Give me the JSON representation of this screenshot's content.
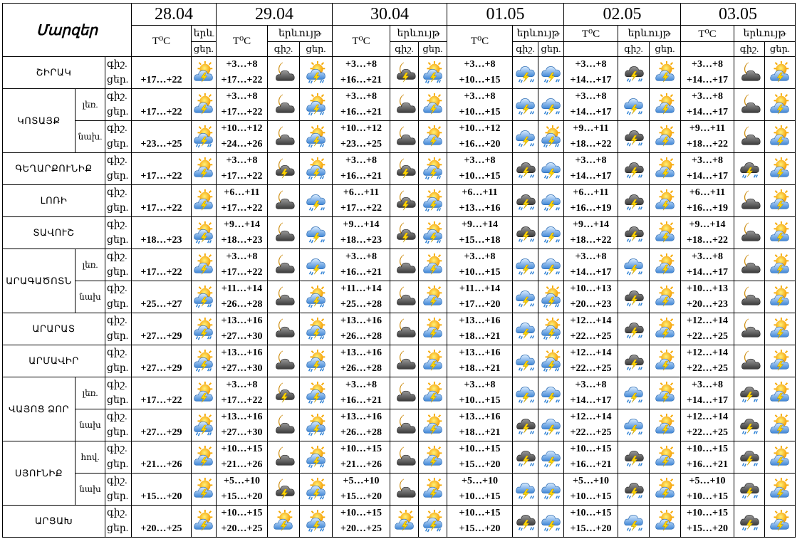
{
  "header": {
    "regions_label": "Մարզեր",
    "dates": [
      "28.04",
      "29.04",
      "30.04",
      "01.05",
      "02.05",
      "03.05"
    ],
    "temp_label": "T⁰C",
    "phenom_label": "երևույթ",
    "phenom_label_short": "երև",
    "night_label": "գիշ.",
    "day_label": "ցեր."
  },
  "icon_legend": {
    "sun-cloud-storm": "partly sunny with thunderstorm",
    "moon-cloud": "night partly cloudy",
    "moon-cloud-storm": "night cloudy with thunderstorm",
    "cloud-storm": "cloudy with thunderstorm",
    "cloud-rain-storm": "cloudy with rain and thunderstorm",
    "sun-cloud-rain-storm": "partly sunny with rain and thunderstorm"
  },
  "colors": {
    "sun": "#f5a800",
    "moon": "#f2b705",
    "cloud_light": "#6e9fd8",
    "cloud_dark": "#4d4d4d",
    "bolt": "#ffd500",
    "rain": "#2a7fd4"
  },
  "rows": [
    {
      "region": "ՇԻՐԱԿ",
      "sub": "",
      "d1": {
        "day": "+17…+22",
        "icon": "sun-cloud-storm"
      },
      "days": [
        {
          "night": "+3…+8",
          "day": "+17…+22",
          "ni": "moon-cloud",
          "di": "sun-cloud-rain-storm"
        },
        {
          "night": "+3…+8",
          "day": "+16…+21",
          "ni": "moon-cloud-storm",
          "di": "sun-cloud-rain-storm"
        },
        {
          "night": "+3…+8",
          "day": "+10…+15",
          "ni": "cloud-rain-storm",
          "di": "cloud-rain-storm"
        },
        {
          "night": "+3…+8",
          "day": "+14…+17",
          "ni": "cloud-storm",
          "di": "sun-cloud-storm"
        },
        {
          "night": "+3…+8",
          "day": "+14…+17",
          "ni": "moon-cloud",
          "di": "sun-cloud-storm"
        }
      ]
    },
    {
      "region": "ԿՈՏԱՅՔ",
      "sub": "լեռ.",
      "d1": {
        "day": "+17…+22",
        "icon": "sun-cloud-storm"
      },
      "days": [
        {
          "night": "+3…+8",
          "day": "+17…+22",
          "ni": "moon-cloud",
          "di": "sun-cloud-rain-storm"
        },
        {
          "night": "+3…+8",
          "day": "+16…+21",
          "ni": "moon-cloud",
          "di": "sun-cloud-storm"
        },
        {
          "night": "+3…+8",
          "day": "+10…+15",
          "ni": "cloud-rain-storm",
          "di": "cloud-rain-storm"
        },
        {
          "night": "+3…+8",
          "day": "+14…+17",
          "ni": "cloud-rain-storm",
          "di": "sun-cloud-storm"
        },
        {
          "night": "+3…+8",
          "day": "+14…+17",
          "ni": "moon-cloud",
          "di": "sun-cloud-storm"
        }
      ]
    },
    {
      "region": "",
      "sub": "նախ.",
      "d1": {
        "day": "+23…+25",
        "icon": "sun-cloud-rain-storm"
      },
      "days": [
        {
          "night": "+10…+12",
          "day": "+24…+26",
          "ni": "moon-cloud",
          "di": "sun-cloud-rain-storm"
        },
        {
          "night": "+10…+12",
          "day": "+23…+25",
          "ni": "moon-cloud",
          "di": "sun-cloud-storm"
        },
        {
          "night": "+10…+12",
          "day": "+16…+20",
          "ni": "cloud-rain-storm",
          "di": "sun-cloud-rain-storm"
        },
        {
          "night": "+9…+11",
          "day": "+18…+22",
          "ni": "cloud-storm",
          "di": "sun-cloud-storm"
        },
        {
          "night": "+9…+11",
          "day": "+18…+22",
          "ni": "moon-cloud",
          "di": "sun-cloud-storm"
        }
      ]
    },
    {
      "region": "ԳԵՂԱՐՔՈՒՆԻՔ",
      "sub": "",
      "d1": {
        "day": "+17…+22",
        "icon": "sun-cloud-storm"
      },
      "days": [
        {
          "night": "+3…+8",
          "day": "+17…+22",
          "ni": "moon-cloud-storm",
          "di": "sun-cloud-rain-storm"
        },
        {
          "night": "+3…+8",
          "day": "+16…+21",
          "ni": "moon-cloud-storm",
          "di": "sun-cloud-rain-storm"
        },
        {
          "night": "+3…+8",
          "day": "+10…+15",
          "ni": "cloud-storm",
          "di": "cloud-rain-storm"
        },
        {
          "night": "+3…+8",
          "day": "+14…+17",
          "ni": "cloud-storm",
          "di": "sun-cloud-storm"
        },
        {
          "night": "+3…+8",
          "day": "+14…+17",
          "ni": "cloud-storm",
          "di": "sun-cloud-storm"
        }
      ]
    },
    {
      "region": "ԼՈՌԻ",
      "sub": "",
      "d1": {
        "day": "+17…+22",
        "icon": "sun-cloud-storm"
      },
      "days": [
        {
          "night": "+6…+11",
          "day": "+17…+22",
          "ni": "moon-cloud",
          "di": "cloud-rain-storm"
        },
        {
          "night": "+6…+11",
          "day": "+17…+22",
          "ni": "moon-cloud-storm",
          "di": "sun-cloud-rain-storm"
        },
        {
          "night": "+6…+11",
          "day": "+13…+16",
          "ni": "cloud-storm",
          "di": "cloud-rain-storm"
        },
        {
          "night": "+6…+11",
          "day": "+16…+19",
          "ni": "cloud-storm",
          "di": "sun-cloud-storm"
        },
        {
          "night": "+6…+11",
          "day": "+16…+19",
          "ni": "moon-cloud",
          "di": "sun-cloud-storm"
        }
      ]
    },
    {
      "region": "ՏԱՎՈՒՇ",
      "sub": "",
      "d1": {
        "day": "+18…+23",
        "icon": "sun-cloud-rain-storm"
      },
      "days": [
        {
          "night": "+9…+14",
          "day": "+18…+23",
          "ni": "moon-cloud",
          "di": "cloud-rain-storm"
        },
        {
          "night": "+9…+14",
          "day": "+18…+23",
          "ni": "moon-cloud-storm",
          "di": "sun-cloud-rain-storm"
        },
        {
          "night": "+9…+14",
          "day": "+15…+18",
          "ni": "cloud-storm",
          "di": "cloud-rain-storm"
        },
        {
          "night": "+9…+14",
          "day": "+18…+22",
          "ni": "cloud-storm",
          "di": "sun-cloud-storm"
        },
        {
          "night": "+9…+14",
          "day": "+18…+22",
          "ni": "moon-cloud",
          "di": "sun-cloud-storm"
        }
      ]
    },
    {
      "region": "ԱՐԱԳԱԾՈՏՆ",
      "sub": "լեռ.",
      "d1": {
        "day": "+17…+22",
        "icon": "sun-cloud-storm"
      },
      "days": [
        {
          "night": "+3…+8",
          "day": "+17…+22",
          "ni": "moon-cloud",
          "di": "cloud-rain-storm"
        },
        {
          "night": "+3…+8",
          "day": "+16…+21",
          "ni": "moon-cloud",
          "di": "sun-cloud-storm"
        },
        {
          "night": "+3…+8",
          "day": "+10…+15",
          "ni": "cloud-rain-storm",
          "di": "cloud-rain-storm"
        },
        {
          "night": "+3…+8",
          "day": "+14…+17",
          "ni": "cloud-rain-storm",
          "di": "sun-cloud-storm"
        },
        {
          "night": "+3…+8",
          "day": "+14…+17",
          "ni": "moon-cloud",
          "di": "sun-cloud-storm"
        }
      ]
    },
    {
      "region": "",
      "sub": "նախ",
      "d1": {
        "day": "+25…+27",
        "icon": "sun-cloud-rain-storm"
      },
      "days": [
        {
          "night": "+11…+14",
          "day": "+26…+28",
          "ni": "moon-cloud",
          "di": "sun-cloud-rain-storm"
        },
        {
          "night": "+11…+14",
          "day": "+25…+28",
          "ni": "moon-cloud",
          "di": "sun-cloud-storm"
        },
        {
          "night": "+11…+14",
          "day": "+17…+20",
          "ni": "cloud-rain-storm",
          "di": "sun-cloud-rain-storm"
        },
        {
          "night": "+10…+13",
          "day": "+20…+23",
          "ni": "cloud-storm",
          "di": "sun-cloud-storm"
        },
        {
          "night": "+10…+13",
          "day": "+20…+23",
          "ni": "moon-cloud",
          "di": "sun-cloud-storm"
        }
      ]
    },
    {
      "region": "ԱՐԱՐԱՏ",
      "sub": "",
      "d1": {
        "day": "+27…+29",
        "icon": "sun-cloud-rain-storm"
      },
      "days": [
        {
          "night": "+13…+16",
          "day": "+27…+30",
          "ni": "moon-cloud",
          "di": "sun-cloud-rain-storm"
        },
        {
          "night": "+13…+16",
          "day": "+26…+28",
          "ni": "moon-cloud",
          "di": "sun-cloud-storm"
        },
        {
          "night": "+13…+16",
          "day": "+18…+21",
          "ni": "cloud-rain-storm",
          "di": "sun-cloud-rain-storm"
        },
        {
          "night": "+12…+14",
          "day": "+22…+25",
          "ni": "cloud-storm",
          "di": "sun-cloud-storm"
        },
        {
          "night": "+12…+14",
          "day": "+22…+25",
          "ni": "moon-cloud",
          "di": "sun-cloud-storm"
        }
      ]
    },
    {
      "region": "ԱՐՄԱՎԻՐ",
      "sub": "",
      "d1": {
        "day": "+27…+29",
        "icon": "sun-cloud-rain-storm"
      },
      "days": [
        {
          "night": "+13…+16",
          "day": "+27…+30",
          "ni": "moon-cloud",
          "di": "sun-cloud-rain-storm"
        },
        {
          "night": "+13…+16",
          "day": "+26…+28",
          "ni": "moon-cloud",
          "di": "sun-cloud-storm"
        },
        {
          "night": "+13…+16",
          "day": "+18…+21",
          "ni": "cloud-rain-storm",
          "di": "sun-cloud-rain-storm"
        },
        {
          "night": "+12…+14",
          "day": "+22…+25",
          "ni": "cloud-storm",
          "di": "sun-cloud-storm"
        },
        {
          "night": "+12…+14",
          "day": "+22…+25",
          "ni": "moon-cloud",
          "di": "sun-cloud-storm"
        }
      ]
    },
    {
      "region": "ՎԱՅՈՑ ՁՈՐ",
      "sub": "լեռ.",
      "d1": {
        "day": "+17…+22",
        "icon": "sun-cloud-storm"
      },
      "days": [
        {
          "night": "+3…+8",
          "day": "+17…+22",
          "ni": "moon-cloud-storm",
          "di": "sun-cloud-rain-storm"
        },
        {
          "night": "+3…+8",
          "day": "+16…+21",
          "ni": "moon-cloud",
          "di": "sun-cloud-storm"
        },
        {
          "night": "+3…+8",
          "day": "+10…+15",
          "ni": "cloud-rain-storm",
          "di": "cloud-rain-storm"
        },
        {
          "night": "+3…+8",
          "day": "+14…+17",
          "ni": "cloud-rain-storm",
          "di": "sun-cloud-storm"
        },
        {
          "night": "+3…+8",
          "day": "+14…+17",
          "ni": "cloud-storm",
          "di": "sun-cloud-storm"
        }
      ]
    },
    {
      "region": "",
      "sub": "նախ",
      "d1": {
        "day": "+27…+29",
        "icon": "sun-cloud-rain-storm"
      },
      "days": [
        {
          "night": "+13…+16",
          "day": "+27…+30",
          "ni": "moon-cloud",
          "di": "sun-cloud-rain-storm"
        },
        {
          "night": "+13…+16",
          "day": "+26…+28",
          "ni": "moon-cloud",
          "di": "sun-cloud-storm"
        },
        {
          "night": "+13…+16",
          "day": "+18…+21",
          "ni": "cloud-storm",
          "di": "cloud-rain-storm"
        },
        {
          "night": "+12…+14",
          "day": "+22…+25",
          "ni": "cloud-rain-storm",
          "di": "sun-cloud-storm"
        },
        {
          "night": "+12…+14",
          "day": "+22…+25",
          "ni": "cloud-storm",
          "di": "sun-cloud-storm"
        }
      ]
    },
    {
      "region": "ՍՅՈՒՆԻՔ",
      "sub": "հով.",
      "d1": {
        "day": "+21…+26",
        "icon": "sun-cloud-storm"
      },
      "days": [
        {
          "night": "+10…+15",
          "day": "+21…+26",
          "ni": "moon-cloud",
          "di": "sun-cloud-rain-storm"
        },
        {
          "night": "+10…+15",
          "day": "+21…+26",
          "ni": "moon-cloud",
          "di": "sun-cloud-storm"
        },
        {
          "night": "+10…+15",
          "day": "+15…+20",
          "ni": "cloud-storm",
          "di": "cloud-rain-storm"
        },
        {
          "night": "+10…+15",
          "day": "+16…+21",
          "ni": "cloud-storm",
          "di": "sun-cloud-storm"
        },
        {
          "night": "+10…+15",
          "day": "+16…+21",
          "ni": "cloud-storm",
          "di": "sun-cloud-storm"
        }
      ]
    },
    {
      "region": "",
      "sub": "նախ",
      "d1": {
        "day": "+15…+20",
        "icon": "sun-cloud-storm"
      },
      "days": [
        {
          "night": "+5…+10",
          "day": "+15…+20",
          "ni": "moon-cloud-storm",
          "di": "sun-cloud-rain-storm"
        },
        {
          "night": "+5…+10",
          "day": "+15…+20",
          "ni": "moon-cloud",
          "di": "sun-cloud-storm"
        },
        {
          "night": "+5…+10",
          "day": "+10…+15",
          "ni": "cloud-rain-storm",
          "di": "cloud-rain-storm"
        },
        {
          "night": "+5…+10",
          "day": "+10…+15",
          "ni": "cloud-storm",
          "di": "sun-cloud-storm"
        },
        {
          "night": "+5…+10",
          "day": "+10…+15",
          "ni": "cloud-storm",
          "di": "sun-cloud-storm"
        }
      ]
    },
    {
      "region": "ԱՐՑԱԽ",
      "sub": "",
      "d1": {
        "day": "+20…+25",
        "icon": "sun-cloud-storm"
      },
      "days": [
        {
          "night": "+10…+15",
          "day": "+20…+25",
          "ni": "sun-cloud-storm",
          "di": "sun-cloud-rain-storm"
        },
        {
          "night": "+10…+15",
          "day": "+20…+25",
          "ni": "sun-cloud-storm",
          "di": "sun-cloud-rain-storm"
        },
        {
          "night": "+10…+15",
          "day": "+15…+20",
          "ni": "cloud-storm",
          "di": "cloud-rain-storm"
        },
        {
          "night": "+10…+15",
          "day": "+15…+20",
          "ni": "cloud-rain-storm",
          "di": "sun-cloud-storm"
        },
        {
          "night": "+10…+15",
          "day": "+15…+20",
          "ni": "cloud-storm",
          "di": "sun-cloud-storm"
        }
      ]
    }
  ]
}
